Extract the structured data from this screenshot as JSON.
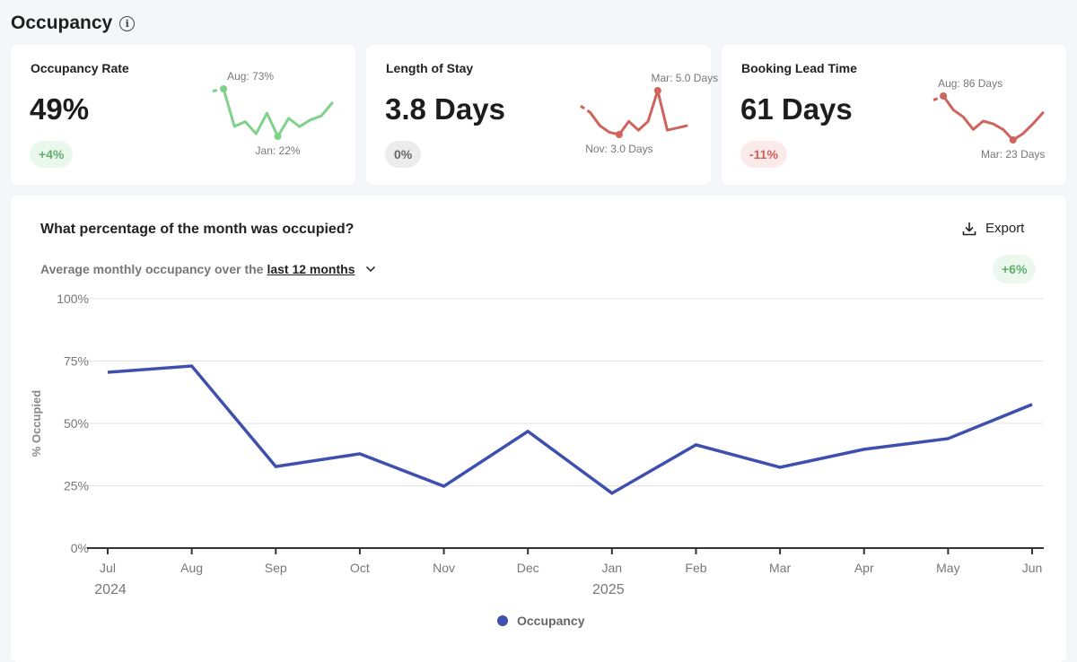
{
  "header": {
    "title": "Occupancy",
    "info_icon": "info-icon"
  },
  "colors": {
    "green": "#7fd18b",
    "red": "#cf645d",
    "blue": "#3f4fae"
  },
  "cards": [
    {
      "title": "Occupancy Rate",
      "value": "49%",
      "change": "+4%",
      "change_tone": "green",
      "spark": {
        "color": "#7fd18b",
        "values": [
          70.5,
          73,
          32.7,
          37.8,
          24.8,
          46.8,
          22,
          41.4,
          32.4,
          39.6,
          43.9,
          57.6
        ],
        "max_label": "Aug: 73%",
        "min_label": "Jan: 22%"
      }
    },
    {
      "title": "Length of Stay",
      "value": "3.8 Days",
      "change": "0%",
      "change_tone": "gray",
      "spark": {
        "color": "#cf645d",
        "values": [
          4.3,
          4.0,
          3.4,
          3.1,
          3.0,
          3.6,
          3.2,
          3.6,
          5.0,
          3.2,
          3.3,
          3.4
        ],
        "max_label": "Mar: 5.0 Days",
        "min_label": "Nov: 3.0 Days"
      }
    },
    {
      "title": "Booking Lead Time",
      "value": "61 Days",
      "change": "-11%",
      "change_tone": "red",
      "spark": {
        "color": "#cf645d",
        "values": [
          80,
          86,
          66,
          56,
          38,
          50,
          46,
          38,
          23,
          32,
          46,
          62
        ],
        "max_label": "Aug: 86 Days",
        "min_label": "Mar: 23 Days"
      }
    }
  ],
  "chart_panel": {
    "title": "What percentage of the month was occupied?",
    "subtitle_prefix": "Average monthly occupancy over the",
    "range_selected": "last 12 months",
    "export_label": "Export",
    "trend_badge": "+6%"
  },
  "chart_data": {
    "type": "line",
    "title": "",
    "ylabel": "% Occupied",
    "xlabel": "",
    "categories": [
      "Jul",
      "Aug",
      "Sep",
      "Oct",
      "Nov",
      "Dec",
      "Jan",
      "Feb",
      "Mar",
      "Apr",
      "May",
      "Jun"
    ],
    "year_labels": [
      {
        "at": "Jul",
        "label": "2024"
      },
      {
        "at": "Jan",
        "label": "2025"
      }
    ],
    "ylim": [
      0,
      100
    ],
    "yticks": [
      0,
      25,
      50,
      75,
      100
    ],
    "ytick_labels": [
      "0%",
      "25%",
      "50%",
      "75%",
      "100%"
    ],
    "grid": true,
    "legend": "bottom-center",
    "series": [
      {
        "name": "Occupancy",
        "color": "#3f4fae",
        "values": [
          70.5,
          73,
          32.7,
          37.8,
          24.8,
          46.8,
          22,
          41.4,
          32.4,
          39.6,
          43.9,
          57.6
        ]
      }
    ]
  }
}
